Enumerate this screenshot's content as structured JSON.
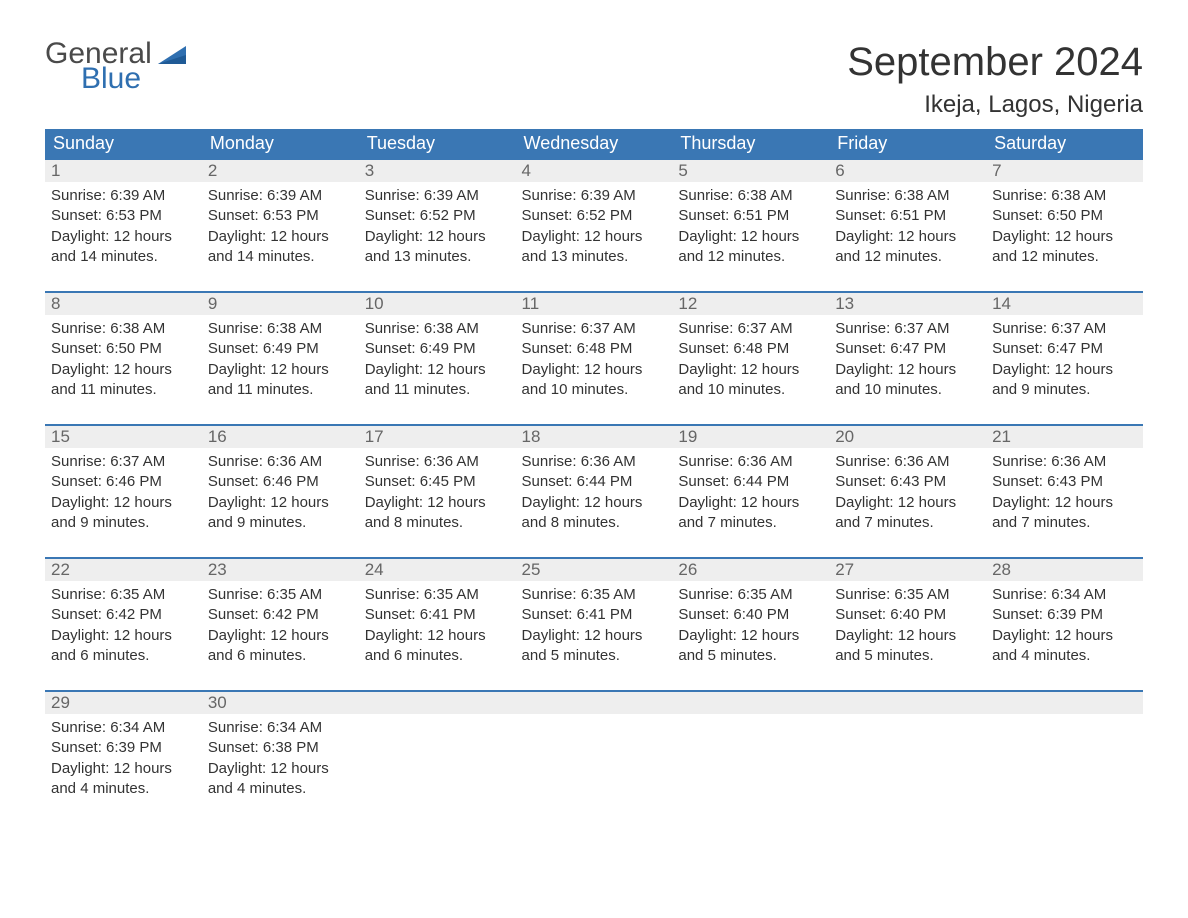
{
  "logo": {
    "word1": "General",
    "word2": "Blue"
  },
  "title": "September 2024",
  "location": "Ikeja, Lagos, Nigeria",
  "colors": {
    "header_bg": "#3a77b4",
    "header_text": "#ffffff",
    "daynum_bg": "#eeeeee",
    "daynum_text": "#666666",
    "body_text": "#333333",
    "accent_blue": "#2f6fb0",
    "rule": "#3a77b4",
    "page_bg": "#ffffff"
  },
  "typography": {
    "title_fontsize": 40,
    "location_fontsize": 24,
    "weekday_fontsize": 18,
    "daynum_fontsize": 17,
    "detail_fontsize": 15,
    "logo_fontsize": 30
  },
  "layout": {
    "columns": 7,
    "rows": 5,
    "first_weekday": "Sunday"
  },
  "weekdays": [
    "Sunday",
    "Monday",
    "Tuesday",
    "Wednesday",
    "Thursday",
    "Friday",
    "Saturday"
  ],
  "labels": {
    "sunrise": "Sunrise:",
    "sunset": "Sunset:",
    "daylight": "Daylight:"
  },
  "days": [
    {
      "n": 1,
      "sunrise": "6:39 AM",
      "sunset": "6:53 PM",
      "daylight_l1": "12 hours",
      "daylight_l2": "and 14 minutes."
    },
    {
      "n": 2,
      "sunrise": "6:39 AM",
      "sunset": "6:53 PM",
      "daylight_l1": "12 hours",
      "daylight_l2": "and 14 minutes."
    },
    {
      "n": 3,
      "sunrise": "6:39 AM",
      "sunset": "6:52 PM",
      "daylight_l1": "12 hours",
      "daylight_l2": "and 13 minutes."
    },
    {
      "n": 4,
      "sunrise": "6:39 AM",
      "sunset": "6:52 PM",
      "daylight_l1": "12 hours",
      "daylight_l2": "and 13 minutes."
    },
    {
      "n": 5,
      "sunrise": "6:38 AM",
      "sunset": "6:51 PM",
      "daylight_l1": "12 hours",
      "daylight_l2": "and 12 minutes."
    },
    {
      "n": 6,
      "sunrise": "6:38 AM",
      "sunset": "6:51 PM",
      "daylight_l1": "12 hours",
      "daylight_l2": "and 12 minutes."
    },
    {
      "n": 7,
      "sunrise": "6:38 AM",
      "sunset": "6:50 PM",
      "daylight_l1": "12 hours",
      "daylight_l2": "and 12 minutes."
    },
    {
      "n": 8,
      "sunrise": "6:38 AM",
      "sunset": "6:50 PM",
      "daylight_l1": "12 hours",
      "daylight_l2": "and 11 minutes."
    },
    {
      "n": 9,
      "sunrise": "6:38 AM",
      "sunset": "6:49 PM",
      "daylight_l1": "12 hours",
      "daylight_l2": "and 11 minutes."
    },
    {
      "n": 10,
      "sunrise": "6:38 AM",
      "sunset": "6:49 PM",
      "daylight_l1": "12 hours",
      "daylight_l2": "and 11 minutes."
    },
    {
      "n": 11,
      "sunrise": "6:37 AM",
      "sunset": "6:48 PM",
      "daylight_l1": "12 hours",
      "daylight_l2": "and 10 minutes."
    },
    {
      "n": 12,
      "sunrise": "6:37 AM",
      "sunset": "6:48 PM",
      "daylight_l1": "12 hours",
      "daylight_l2": "and 10 minutes."
    },
    {
      "n": 13,
      "sunrise": "6:37 AM",
      "sunset": "6:47 PM",
      "daylight_l1": "12 hours",
      "daylight_l2": "and 10 minutes."
    },
    {
      "n": 14,
      "sunrise": "6:37 AM",
      "sunset": "6:47 PM",
      "daylight_l1": "12 hours",
      "daylight_l2": "and 9 minutes."
    },
    {
      "n": 15,
      "sunrise": "6:37 AM",
      "sunset": "6:46 PM",
      "daylight_l1": "12 hours",
      "daylight_l2": "and 9 minutes."
    },
    {
      "n": 16,
      "sunrise": "6:36 AM",
      "sunset": "6:46 PM",
      "daylight_l1": "12 hours",
      "daylight_l2": "and 9 minutes."
    },
    {
      "n": 17,
      "sunrise": "6:36 AM",
      "sunset": "6:45 PM",
      "daylight_l1": "12 hours",
      "daylight_l2": "and 8 minutes."
    },
    {
      "n": 18,
      "sunrise": "6:36 AM",
      "sunset": "6:44 PM",
      "daylight_l1": "12 hours",
      "daylight_l2": "and 8 minutes."
    },
    {
      "n": 19,
      "sunrise": "6:36 AM",
      "sunset": "6:44 PM",
      "daylight_l1": "12 hours",
      "daylight_l2": "and 7 minutes."
    },
    {
      "n": 20,
      "sunrise": "6:36 AM",
      "sunset": "6:43 PM",
      "daylight_l1": "12 hours",
      "daylight_l2": "and 7 minutes."
    },
    {
      "n": 21,
      "sunrise": "6:36 AM",
      "sunset": "6:43 PM",
      "daylight_l1": "12 hours",
      "daylight_l2": "and 7 minutes."
    },
    {
      "n": 22,
      "sunrise": "6:35 AM",
      "sunset": "6:42 PM",
      "daylight_l1": "12 hours",
      "daylight_l2": "and 6 minutes."
    },
    {
      "n": 23,
      "sunrise": "6:35 AM",
      "sunset": "6:42 PM",
      "daylight_l1": "12 hours",
      "daylight_l2": "and 6 minutes."
    },
    {
      "n": 24,
      "sunrise": "6:35 AM",
      "sunset": "6:41 PM",
      "daylight_l1": "12 hours",
      "daylight_l2": "and 6 minutes."
    },
    {
      "n": 25,
      "sunrise": "6:35 AM",
      "sunset": "6:41 PM",
      "daylight_l1": "12 hours",
      "daylight_l2": "and 5 minutes."
    },
    {
      "n": 26,
      "sunrise": "6:35 AM",
      "sunset": "6:40 PM",
      "daylight_l1": "12 hours",
      "daylight_l2": "and 5 minutes."
    },
    {
      "n": 27,
      "sunrise": "6:35 AM",
      "sunset": "6:40 PM",
      "daylight_l1": "12 hours",
      "daylight_l2": "and 5 minutes."
    },
    {
      "n": 28,
      "sunrise": "6:34 AM",
      "sunset": "6:39 PM",
      "daylight_l1": "12 hours",
      "daylight_l2": "and 4 minutes."
    },
    {
      "n": 29,
      "sunrise": "6:34 AM",
      "sunset": "6:39 PM",
      "daylight_l1": "12 hours",
      "daylight_l2": "and 4 minutes."
    },
    {
      "n": 30,
      "sunrise": "6:34 AM",
      "sunset": "6:38 PM",
      "daylight_l1": "12 hours",
      "daylight_l2": "and 4 minutes."
    }
  ]
}
